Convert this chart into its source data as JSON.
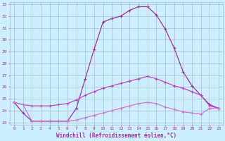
{
  "xlabel": "Windchill (Refroidissement éolien,°C)",
  "background_color": "#cceeff",
  "grid_color": "#aabbcc",
  "line_color1": "#993399",
  "line_color2": "#bb44bb",
  "line_color3": "#cc77cc",
  "xlim": [
    -0.5,
    23.5
  ],
  "ylim": [
    22.8,
    33.2
  ],
  "yticks": [
    23,
    24,
    25,
    26,
    27,
    28,
    29,
    30,
    31,
    32,
    33
  ],
  "xticks": [
    0,
    1,
    2,
    3,
    4,
    5,
    6,
    7,
    8,
    9,
    10,
    11,
    12,
    13,
    14,
    15,
    16,
    17,
    18,
    19,
    20,
    21,
    22,
    23
  ],
  "line1_x": [
    0,
    1,
    2,
    3,
    4,
    5,
    6,
    7,
    8,
    9,
    10,
    11,
    12,
    13,
    14,
    15,
    16,
    17,
    18,
    19,
    20,
    21,
    22,
    23
  ],
  "line1_y": [
    24.7,
    23.8,
    23.1,
    23.1,
    23.1,
    23.1,
    23.1,
    24.2,
    26.7,
    29.2,
    31.5,
    31.8,
    32.0,
    32.5,
    32.8,
    32.8,
    32.1,
    30.9,
    29.3,
    27.3,
    26.1,
    25.3,
    24.5,
    24.2
  ],
  "line2_x": [
    0,
    1,
    2,
    3,
    4,
    5,
    6,
    7,
    8,
    9,
    10,
    11,
    12,
    13,
    14,
    15,
    16,
    17,
    18,
    19,
    20,
    21,
    22,
    23
  ],
  "line2_y": [
    24.7,
    24.5,
    24.4,
    24.4,
    24.4,
    24.5,
    24.6,
    24.9,
    25.3,
    25.6,
    25.9,
    26.1,
    26.3,
    26.5,
    26.7,
    26.9,
    26.7,
    26.4,
    26.1,
    25.9,
    25.6,
    25.3,
    24.4,
    24.2
  ],
  "line3_x": [
    0,
    1,
    2,
    3,
    4,
    5,
    6,
    7,
    8,
    9,
    10,
    11,
    12,
    13,
    14,
    15,
    16,
    17,
    18,
    19,
    20,
    21,
    22,
    23
  ],
  "line3_y": [
    24.7,
    24.5,
    23.1,
    23.1,
    23.1,
    23.1,
    23.1,
    23.2,
    23.4,
    23.6,
    23.8,
    24.0,
    24.2,
    24.4,
    24.6,
    24.7,
    24.6,
    24.3,
    24.1,
    23.9,
    23.8,
    23.7,
    24.2,
    24.2
  ]
}
